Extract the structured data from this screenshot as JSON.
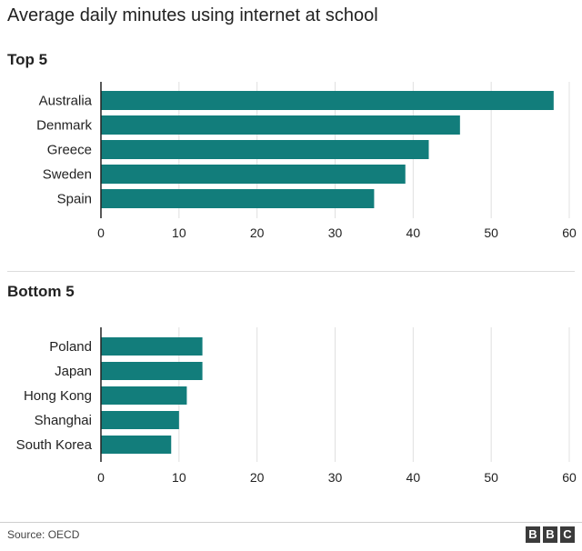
{
  "title": "Average daily minutes using internet at school",
  "source": "Source: OECD",
  "logo_letters": [
    "B",
    "B",
    "C"
  ],
  "colors": {
    "bar": "#127d7b",
    "grid": "#e0e0e0",
    "axis": "#222222",
    "text": "#222222"
  },
  "chart_data": [
    {
      "type": "bar",
      "orientation": "horizontal",
      "title": "Top 5",
      "categories": [
        "Australia",
        "Denmark",
        "Greece",
        "Sweden",
        "Spain"
      ],
      "values": [
        58,
        46,
        42,
        39,
        35
      ],
      "xlim": [
        0,
        60
      ],
      "xticks": [
        0,
        10,
        20,
        30,
        40,
        50,
        60
      ],
      "grid": true
    },
    {
      "type": "bar",
      "orientation": "horizontal",
      "title": "Bottom 5",
      "categories": [
        "Poland",
        "Japan",
        "Hong Kong",
        "Shanghai",
        "South Korea"
      ],
      "values": [
        13,
        13,
        11,
        10,
        9
      ],
      "xlim": [
        0,
        60
      ],
      "xticks": [
        0,
        10,
        20,
        30,
        40,
        50,
        60
      ],
      "grid": true
    }
  ]
}
